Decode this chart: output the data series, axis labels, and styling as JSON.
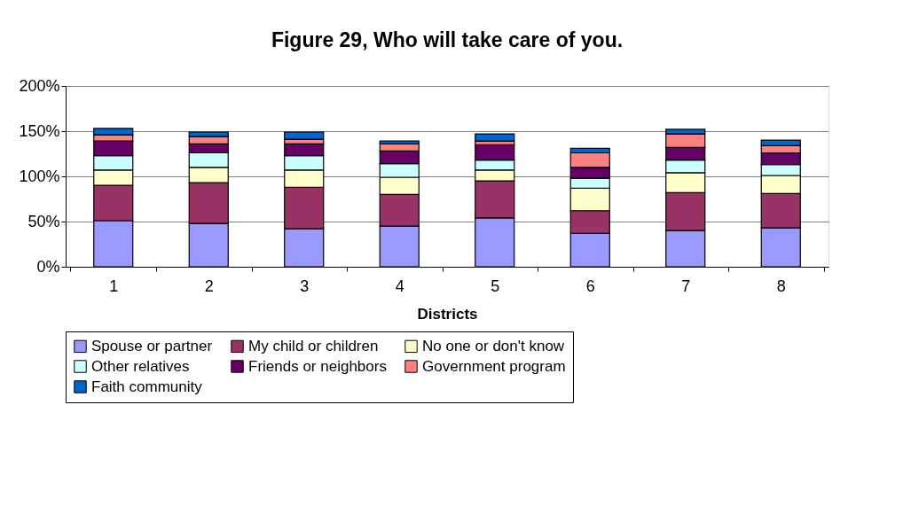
{
  "chart_data": {
    "type": "bar",
    "stacked": true,
    "title": "Figure 29, Who will take care of you.",
    "xlabel": "Districts",
    "categories": [
      "1",
      "2",
      "3",
      "4",
      "5",
      "6",
      "7",
      "8"
    ],
    "ylim": [
      0,
      200
    ],
    "yticks": [
      {
        "value": 0,
        "label": "0%"
      },
      {
        "value": 50,
        "label": "50%"
      },
      {
        "value": 100,
        "label": "100%"
      },
      {
        "value": 150,
        "label": "150%"
      },
      {
        "value": 200,
        "label": "200%"
      }
    ],
    "grid": "y",
    "legend": "bottom",
    "series": [
      {
        "name": "Spouse or partner",
        "color": "#9999ff",
        "values": [
          51,
          48,
          42,
          45,
          54,
          37,
          40,
          43
        ]
      },
      {
        "name": "My child or children",
        "color": "#993366",
        "values": [
          39,
          45,
          46,
          35,
          41,
          25,
          42,
          38
        ]
      },
      {
        "name": "No one or don't know",
        "color": "#ffffcc",
        "values": [
          17,
          17,
          19,
          19,
          12,
          25,
          22,
          20
        ]
      },
      {
        "name": "Other relatives",
        "color": "#ccffff",
        "values": [
          16,
          16,
          16,
          15,
          11,
          11,
          14,
          12
        ]
      },
      {
        "name": "Friends or neighbors",
        "color": "#660066",
        "values": [
          16,
          10,
          13,
          14,
          17,
          12,
          14,
          13
        ]
      },
      {
        "name": "Government program",
        "color": "#ff8080",
        "values": [
          7,
          8,
          5,
          8,
          4,
          16,
          15,
          8
        ]
      },
      {
        "name": "Faith community",
        "color": "#0066cc",
        "values": [
          7,
          5,
          8,
          3,
          8,
          5,
          5,
          6
        ]
      }
    ]
  }
}
